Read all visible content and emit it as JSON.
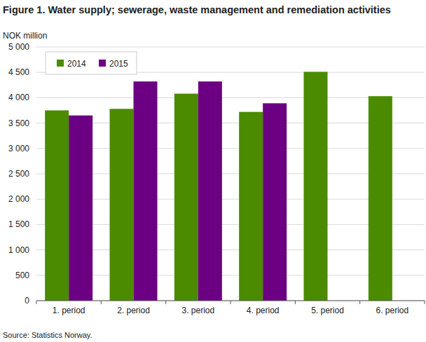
{
  "chart_data": {
    "type": "bar",
    "title": "Figure 1. Water supply; sewerage, waste management and remediation activities",
    "y_label": "NOK million",
    "source": "Source: Statistics Norway.",
    "categories": [
      "1. period",
      "2. period",
      "3. period",
      "4. period",
      "5. period",
      "6. period"
    ],
    "series": [
      {
        "name": "2014",
        "color": "#4b8b00",
        "values": [
          3750,
          3780,
          4080,
          3720,
          4510,
          4030
        ]
      },
      {
        "name": "2015",
        "color": "#6c0083",
        "values": [
          3650,
          4320,
          4320,
          3890,
          null,
          null
        ]
      }
    ],
    "ylim": [
      0,
      5000
    ],
    "yticks": [
      0,
      500,
      {
        "value": 1000,
        "label": "1 000"
      },
      {
        "value": 1500,
        "label": "1 500"
      },
      {
        "value": 2000,
        "label": "2 000"
      },
      {
        "value": 2500,
        "label": "2 500"
      },
      {
        "value": 3000,
        "label": "3 000"
      },
      {
        "value": 3500,
        "label": "3 500"
      },
      {
        "value": 4000,
        "label": "4 000"
      },
      {
        "value": 4500,
        "label": "4 500"
      },
      {
        "value": 5000,
        "label": "5 000"
      }
    ],
    "grid": true,
    "legend": "top-left"
  }
}
